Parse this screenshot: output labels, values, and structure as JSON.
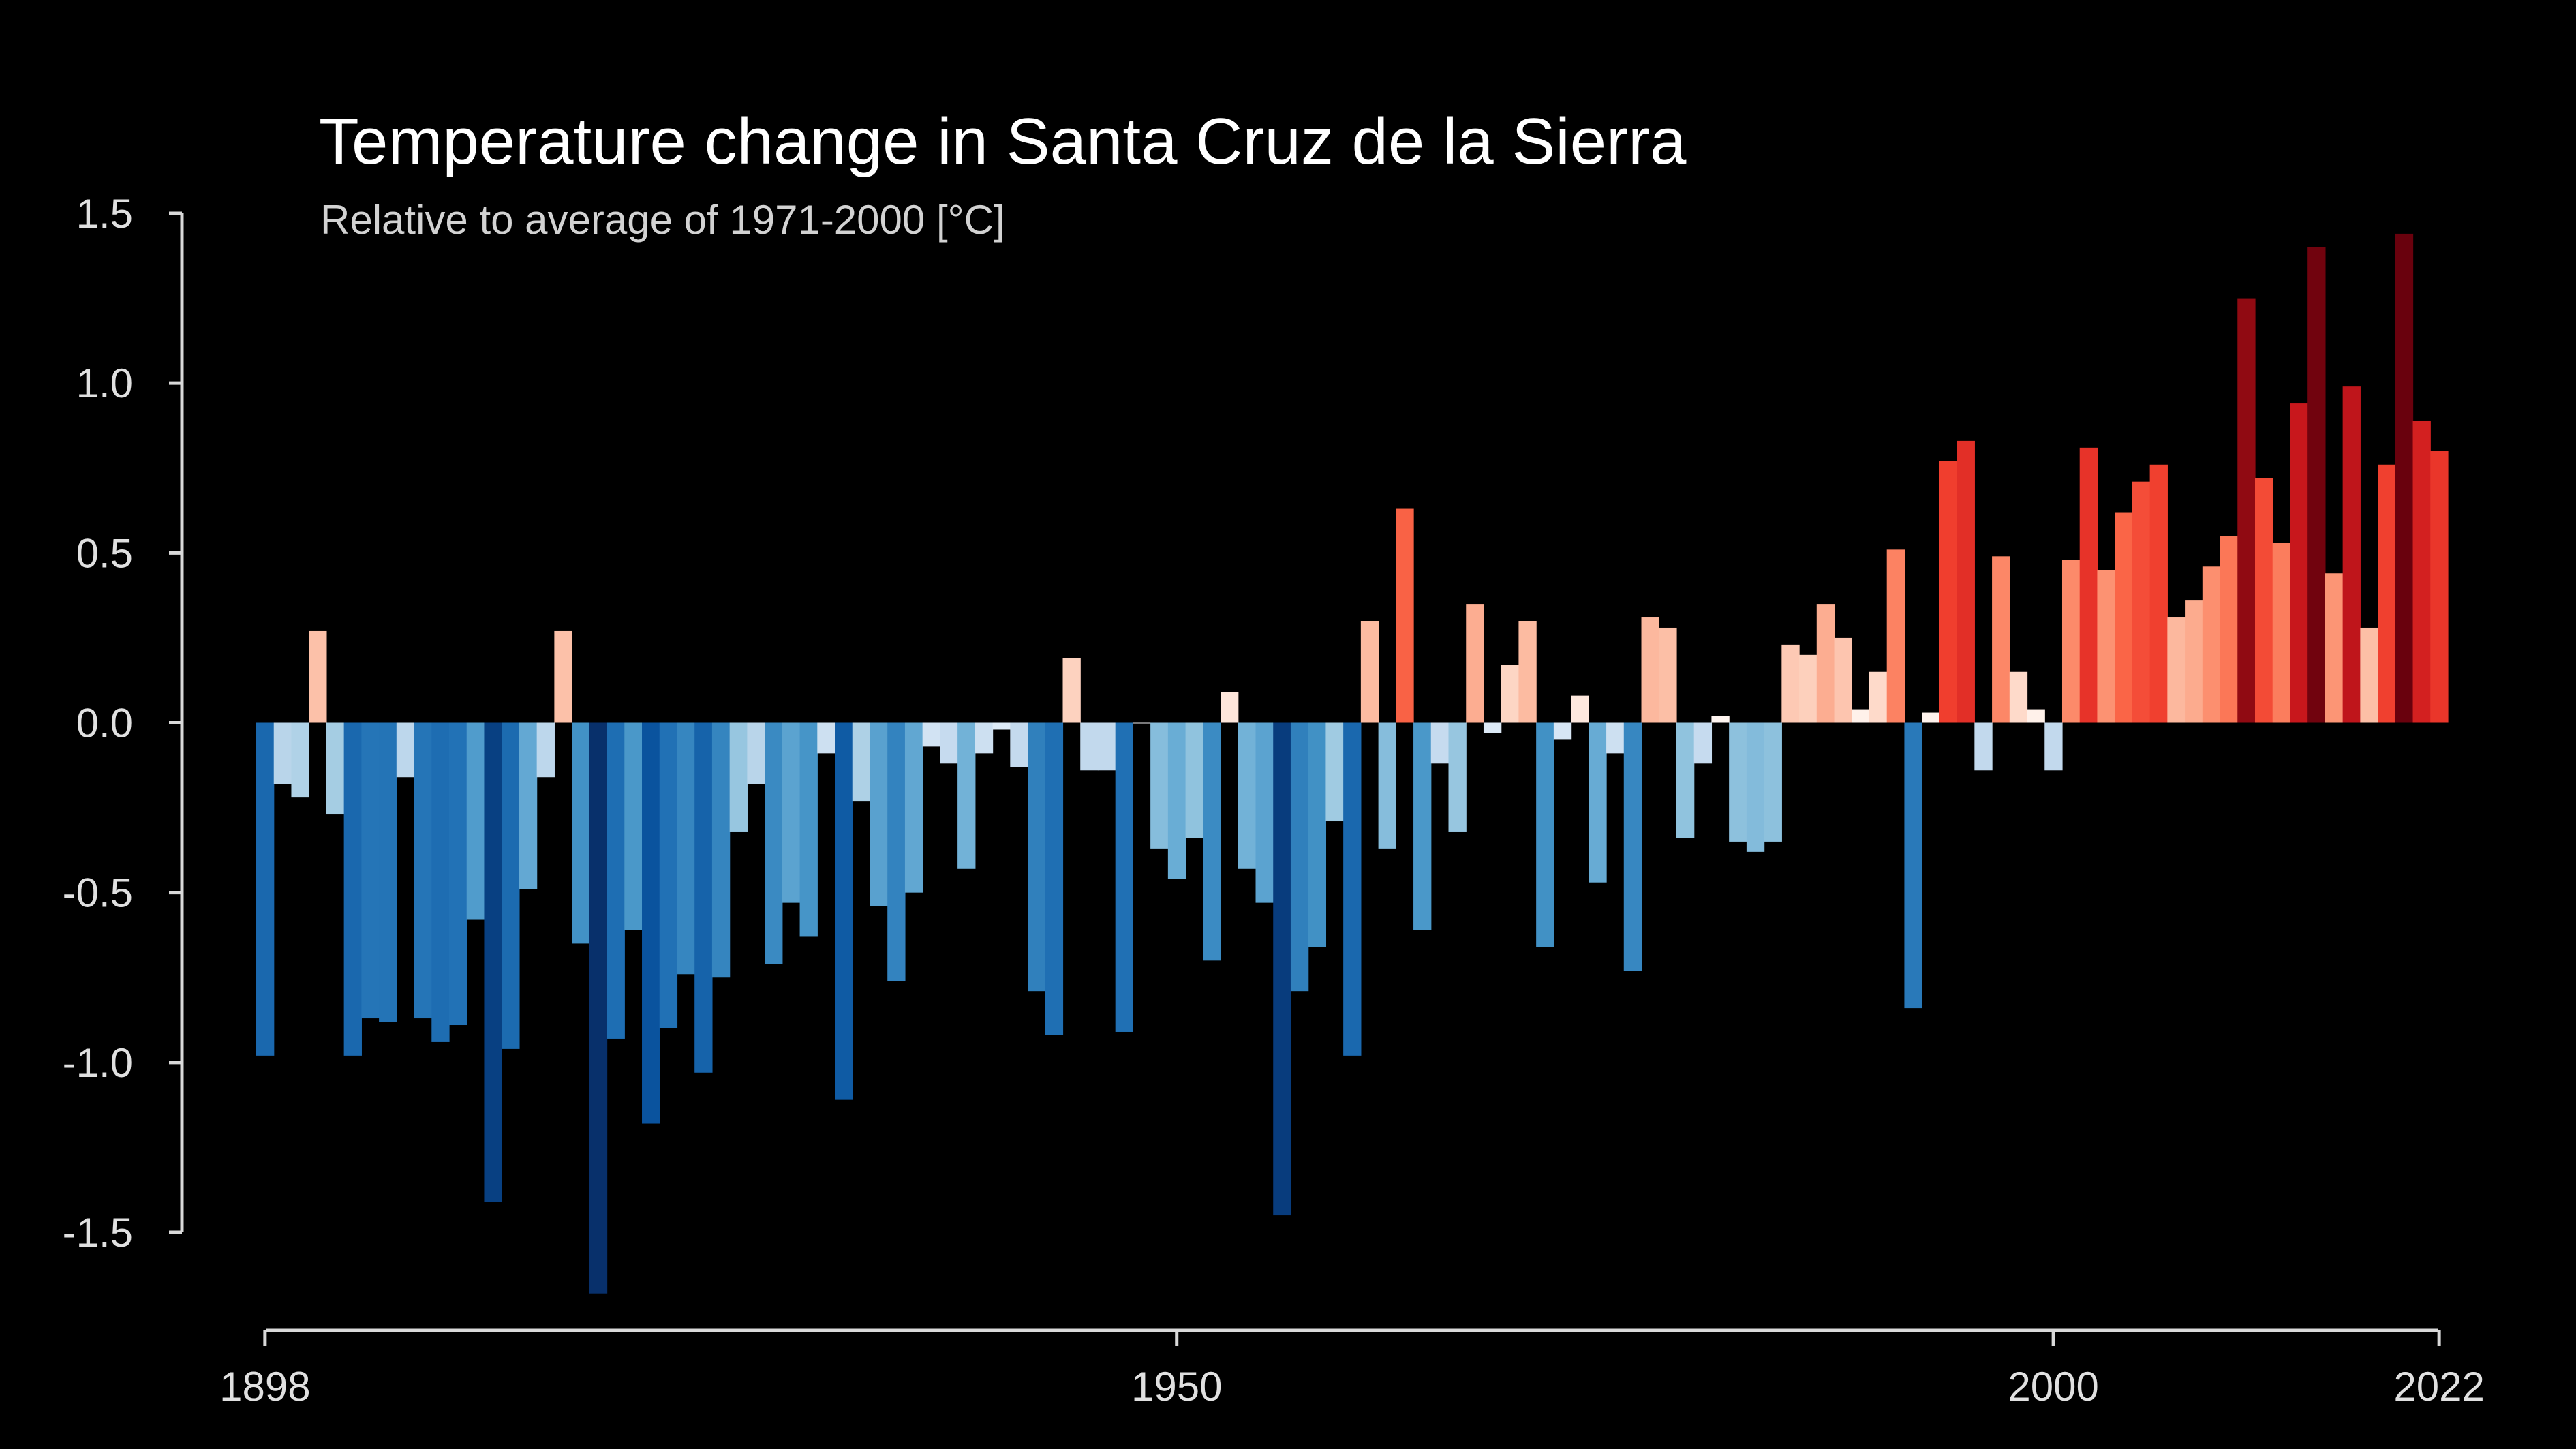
{
  "chart_data": {
    "type": "bar",
    "title": "Temperature change in Santa Cruz de la Sierra",
    "subtitle": "Relative to average of 1971-2000  [°C]",
    "xlabel": "",
    "ylabel": "",
    "x_start": 1898,
    "x_end": 2022,
    "ylim": [
      -1.5,
      1.5
    ],
    "xlim": [
      1898,
      2022
    ],
    "yticks": [
      "1.5",
      "1.0",
      "0.5",
      "0.0",
      "-0.5",
      "-1.0",
      "-1.5"
    ],
    "xticks": [
      "1898",
      "1950",
      "2000",
      "2022"
    ],
    "grid": false,
    "colormap": "blue-to-red (cold years blue, warm years red)",
    "color_cold_max": "#08306b",
    "color_neutral": "#f7f7f7",
    "color_warm_max": "#67000d",
    "values": [
      -0.98,
      -0.18,
      -0.22,
      0.27,
      -0.27,
      -0.98,
      -0.87,
      -0.88,
      -0.16,
      -0.87,
      -0.94,
      -0.89,
      -0.58,
      -1.41,
      -0.96,
      -0.49,
      -0.16,
      0.27,
      -0.65,
      -1.68,
      -0.93,
      -0.61,
      -1.18,
      -0.9,
      -0.74,
      -1.03,
      -0.75,
      -0.32,
      -0.18,
      -0.71,
      -0.53,
      -0.63,
      -0.09,
      -1.11,
      -0.23,
      -0.54,
      -0.76,
      -0.5,
      -0.07,
      -0.12,
      -0.43,
      -0.09,
      -0.02,
      -0.13,
      -0.79,
      -0.92,
      0.19,
      -0.14,
      -0.14,
      -0.91,
      0.0,
      -0.37,
      -0.46,
      -0.34,
      -0.7,
      0.09,
      -0.43,
      -0.53,
      -1.45,
      -0.79,
      -0.66,
      -0.29,
      -0.98,
      0.3,
      -0.37,
      0.63,
      -0.61,
      -0.12,
      -0.32,
      0.35,
      -0.03,
      0.17,
      0.3,
      -0.66,
      -0.05,
      0.08,
      -0.47,
      -0.09,
      -0.73,
      0.31,
      0.28,
      -0.34,
      -0.12,
      0.02,
      -0.35,
      -0.38,
      -0.35,
      0.23,
      0.2,
      0.35,
      0.25,
      0.04,
      0.15,
      0.51,
      -0.84,
      0.03,
      0.77,
      0.83,
      -0.14,
      0.49,
      0.15,
      0.04,
      -0.14,
      0.48,
      0.81,
      0.45,
      0.62,
      0.71,
      0.76,
      0.31,
      0.36,
      0.46,
      0.55,
      1.25,
      0.72,
      0.53,
      0.94,
      1.4,
      0.44,
      0.99,
      0.28,
      0.76,
      1.44,
      0.89,
      0.8
    ]
  }
}
